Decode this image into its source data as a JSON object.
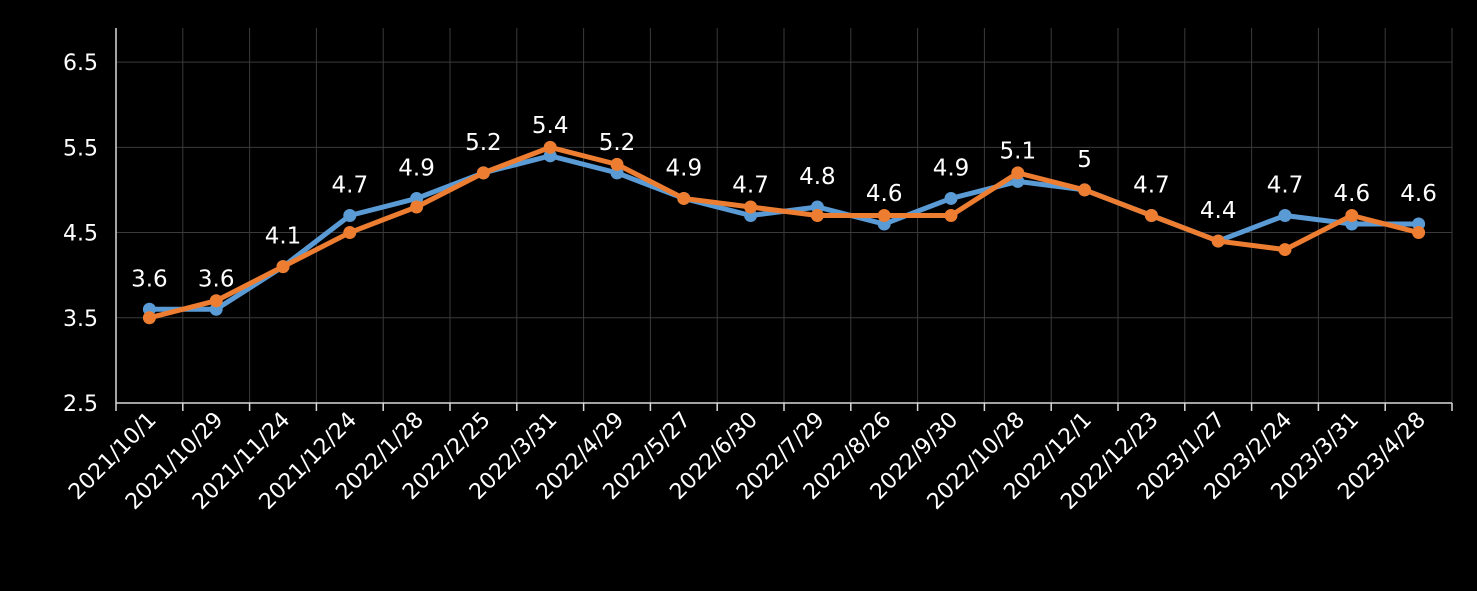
{
  "chart_data": {
    "type": "line",
    "title": "",
    "xlabel": "",
    "ylabel": "",
    "ylim": [
      2.5,
      6.9
    ],
    "yticks": [
      "2.5",
      "3.5",
      "4.5",
      "5.5",
      "6.5"
    ],
    "ytick_values": [
      2.5,
      3.5,
      4.5,
      5.5,
      6.5
    ],
    "grid": true,
    "legend": "none",
    "categories": [
      "2021/10/1",
      "2021/10/29",
      "2021/11/24",
      "2021/12/24",
      "2022/1/28",
      "2022/2/25",
      "2022/3/31",
      "2022/4/29",
      "2022/5/27",
      "2022/6/30",
      "2022/7/29",
      "2022/8/26",
      "2022/9/30",
      "2022/10/28",
      "2022/12/1",
      "2022/12/23",
      "2023/1/27",
      "2023/2/24",
      "2023/3/31",
      "2023/4/28"
    ],
    "series": [
      {
        "color": "#5b9bd5",
        "values": [
          3.6,
          3.6,
          4.1,
          4.7,
          4.9,
          5.2,
          5.4,
          5.2,
          4.9,
          4.7,
          4.8,
          4.6,
          4.9,
          5.1,
          5.0,
          4.7,
          4.4,
          4.7,
          4.6,
          4.6
        ],
        "data_labels": [
          "3.6",
          "3.6",
          "4.1",
          "4.7",
          "4.9",
          "5.2",
          "5.4",
          "5.2",
          "4.9",
          "4.7",
          "4.8",
          "4.6",
          "4.9",
          "5.1",
          "5",
          "4.7",
          "4.4",
          "4.7",
          "4.6",
          "4.6"
        ]
      },
      {
        "color": "#ed7d31",
        "values": [
          3.5,
          3.7,
          4.1,
          4.5,
          4.8,
          5.2,
          5.5,
          5.3,
          4.9,
          4.8,
          4.7,
          4.7,
          4.7,
          5.2,
          5.0,
          4.7,
          4.4,
          4.3,
          4.7,
          4.5
        ]
      }
    ],
    "colors": {
      "background": "#000000",
      "grid": "#3a3a3a",
      "axis": "#d9d9d9",
      "text": "#ffffff"
    }
  }
}
